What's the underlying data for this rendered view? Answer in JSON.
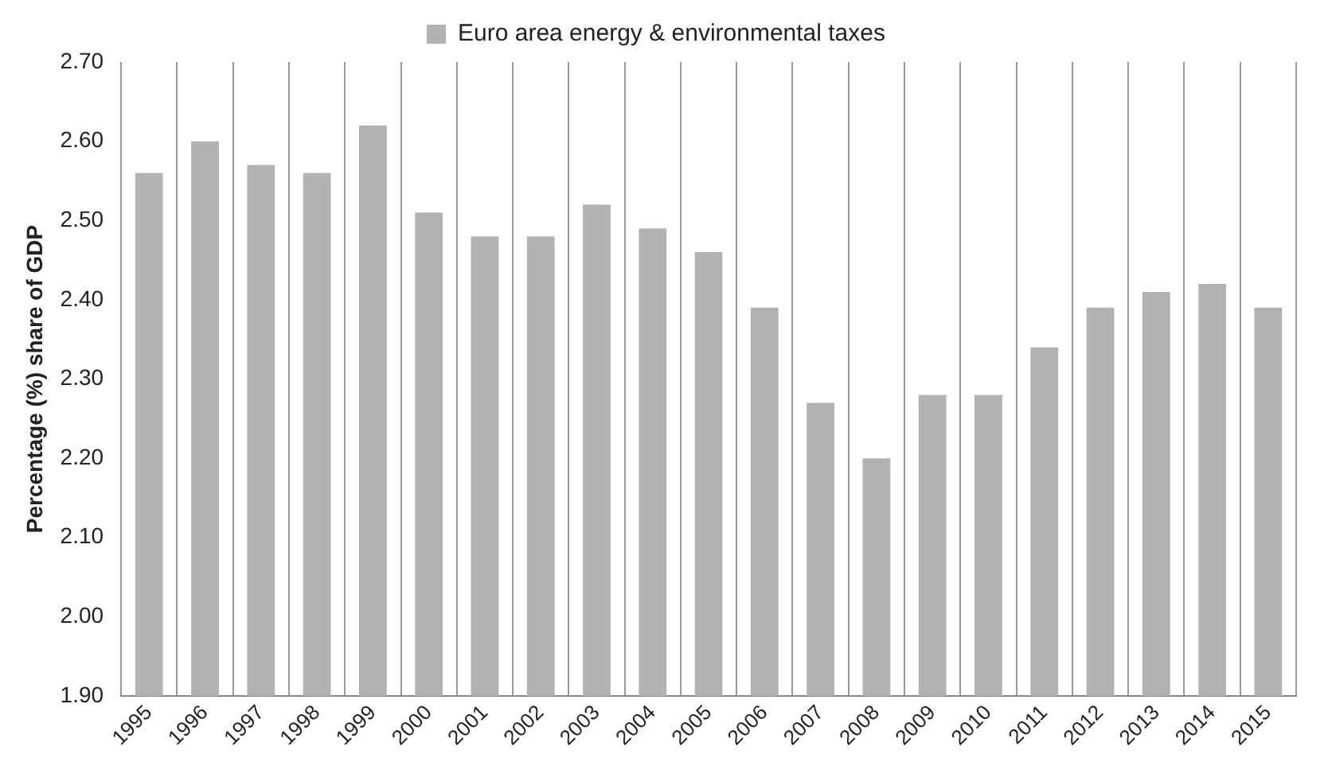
{
  "chart_data": {
    "type": "bar",
    "ylabel": "Percentage (%) share of GDP",
    "categories": [
      "1995",
      "1996",
      "1997",
      "1998",
      "1999",
      "2000",
      "2001",
      "2002",
      "2003",
      "2004",
      "2005",
      "2006",
      "2007",
      "2008",
      "2009",
      "2010",
      "2011",
      "2012",
      "2013",
      "2014",
      "2015"
    ],
    "series": [
      {
        "name": "Euro area energy & environmental taxes",
        "color": "#b2b2b2",
        "values": [
          2.56,
          2.6,
          2.57,
          2.56,
          2.62,
          2.51,
          2.48,
          2.48,
          2.52,
          2.49,
          2.46,
          2.39,
          2.27,
          2.2,
          2.28,
          2.28,
          2.34,
          2.39,
          2.41,
          2.42,
          2.39
        ]
      }
    ],
    "ylim": [
      1.9,
      2.7
    ],
    "yticks": [
      {
        "value": 1.9,
        "label": "1.90"
      },
      {
        "value": 2.0,
        "label": "2.00"
      },
      {
        "value": 2.1,
        "label": "2.10"
      },
      {
        "value": 2.2,
        "label": "2.20"
      },
      {
        "value": 2.3,
        "label": "2.30"
      },
      {
        "value": 2.4,
        "label": "2.40"
      },
      {
        "value": 2.5,
        "label": "2.50"
      },
      {
        "value": 2.6,
        "label": "2.60"
      },
      {
        "value": 2.7,
        "label": "2.70"
      }
    ],
    "grid": "x",
    "legend": "top"
  }
}
